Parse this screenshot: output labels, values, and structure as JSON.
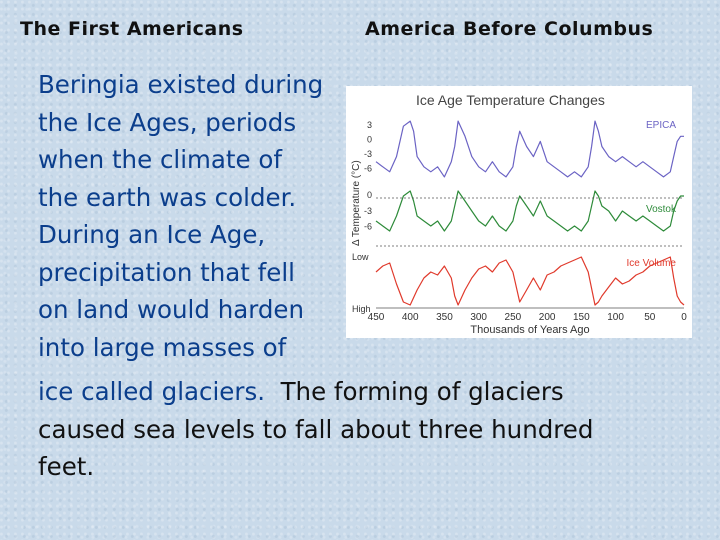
{
  "header": {
    "left_title": "The First Americans",
    "right_title": "America Before Columbus"
  },
  "body": {
    "paragraph_lines": [
      "Beringia existed during",
      "the Ice Ages, periods",
      "when the climate of",
      "the earth was colder.",
      "During an Ice Age,",
      "precipitation that fell",
      "on land would harden",
      "into large masses of"
    ],
    "continuation_blue": "ice called glaciers.",
    "continuation_black_first": "The forming of glaciers",
    "continuation_lines": [
      "caused sea levels to fall about three hundred",
      "feet."
    ]
  },
  "chart_data": {
    "type": "line",
    "title": "Ice Age Temperature Changes",
    "ylabel": "Δ Temperature (°C)",
    "xlabel": "Thousands of Years Ago",
    "x_ticks": [
      "450",
      "400",
      "350",
      "300",
      "250",
      "200",
      "150",
      "100",
      "50",
      "0"
    ],
    "xlim": [
      450,
      0
    ],
    "series": [
      {
        "name": "EPICA",
        "color": "#6b63c4",
        "y_ticks": [
          "3",
          "0",
          "-3",
          "-6"
        ],
        "ylim": [
          -9,
          4
        ],
        "x": [
          450,
          440,
          430,
          420,
          410,
          400,
          395,
          390,
          380,
          370,
          360,
          350,
          340,
          335,
          330,
          320,
          310,
          300,
          290,
          280,
          270,
          260,
          250,
          245,
          240,
          230,
          220,
          210,
          200,
          190,
          180,
          170,
          160,
          150,
          140,
          135,
          130,
          125,
          120,
          110,
          100,
          90,
          80,
          70,
          60,
          50,
          40,
          30,
          20,
          15,
          10,
          5,
          0
        ],
        "y": [
          -5,
          -6,
          -7,
          -4,
          2,
          3,
          1,
          -4,
          -6,
          -7,
          -6,
          -8,
          -5,
          -2,
          3,
          0,
          -4,
          -6,
          -7,
          -5,
          -7,
          -8,
          -6,
          -2,
          1,
          -2,
          -4,
          -1,
          -5,
          -6,
          -7,
          -8,
          -7,
          -8,
          -6,
          -2,
          3,
          1,
          -2,
          -4,
          -5,
          -4,
          -5,
          -6,
          -5,
          -6,
          -7,
          -8,
          -7,
          -4,
          -1,
          0,
          0
        ]
      },
      {
        "name": "Vostok",
        "color": "#2e8b3a",
        "y_ticks": [
          "0",
          "-3",
          "-6"
        ],
        "ylim": [
          -8,
          2
        ],
        "x": [
          450,
          440,
          430,
          420,
          410,
          400,
          395,
          390,
          380,
          370,
          360,
          350,
          340,
          335,
          330,
          320,
          310,
          300,
          290,
          280,
          270,
          260,
          250,
          245,
          240,
          230,
          220,
          210,
          200,
          190,
          180,
          170,
          160,
          150,
          140,
          135,
          130,
          125,
          120,
          110,
          100,
          90,
          80,
          70,
          60,
          50,
          40,
          30,
          20,
          15,
          10,
          5,
          0
        ],
        "y": [
          -5,
          -6,
          -7,
          -4,
          0,
          1,
          -1,
          -4,
          -5,
          -6,
          -5,
          -7,
          -5,
          -2,
          1,
          -1,
          -3,
          -5,
          -6,
          -4,
          -6,
          -7,
          -5,
          -2,
          0,
          -2,
          -4,
          -1,
          -4,
          -5,
          -6,
          -7,
          -6,
          -7,
          -5,
          -2,
          1,
          0,
          -2,
          -3,
          -5,
          -3,
          -4,
          -5,
          -4,
          -5,
          -6,
          -7,
          -6,
          -3,
          -1,
          0,
          0
        ]
      },
      {
        "name": "Ice Volume",
        "color": "#e03a2c",
        "y_ticks": [
          "Low",
          "High"
        ],
        "ylim": [
          0,
          1
        ],
        "x": [
          450,
          440,
          430,
          420,
          410,
          400,
          390,
          380,
          370,
          360,
          350,
          340,
          335,
          330,
          320,
          310,
          300,
          290,
          280,
          270,
          260,
          250,
          240,
          230,
          220,
          210,
          200,
          190,
          180,
          170,
          160,
          150,
          140,
          130,
          125,
          120,
          110,
          100,
          90,
          80,
          70,
          60,
          50,
          40,
          30,
          20,
          15,
          10,
          5,
          0
        ],
        "y": [
          0.6,
          0.7,
          0.75,
          0.4,
          0.1,
          0.05,
          0.3,
          0.5,
          0.6,
          0.55,
          0.7,
          0.5,
          0.2,
          0.05,
          0.3,
          0.5,
          0.65,
          0.7,
          0.6,
          0.75,
          0.8,
          0.6,
          0.1,
          0.3,
          0.5,
          0.3,
          0.55,
          0.6,
          0.7,
          0.75,
          0.8,
          0.85,
          0.6,
          0.05,
          0.1,
          0.2,
          0.35,
          0.5,
          0.4,
          0.45,
          0.55,
          0.6,
          0.7,
          0.75,
          0.8,
          0.85,
          0.5,
          0.2,
          0.1,
          0.05
        ]
      }
    ]
  }
}
